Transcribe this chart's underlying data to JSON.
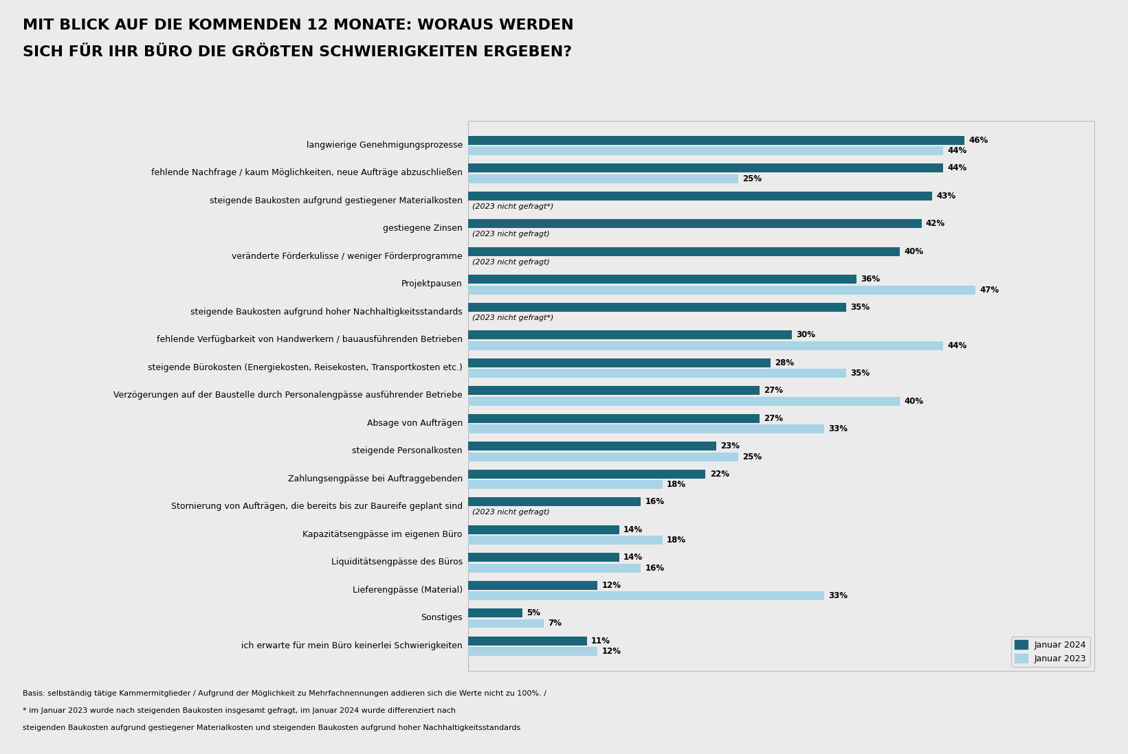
{
  "title_line1": "MIT BLICK AUF DIE KOMMENDEN 12 MONATE: WORAUS WERDEN",
  "title_line2": "SICH FÜR IHR BÜRO DIE GRÖßTEN SCHWIERIGKEITEN ERGEBEN?",
  "categories": [
    "langwierige Genehmigungsprozesse",
    "fehlende Nachfrage / kaum Möglichkeiten, neue Aufträge abzuschließen",
    "steigende Baukosten aufgrund gestiegener Materialkosten",
    "gestiegene Zinsen",
    "veränderte Förderkulisse / weniger Förderprogramme",
    "Projektpausen",
    "steigende Baukosten aufgrund hoher Nachhaltigkeitsstandards",
    "fehlende Verfügbarkeit von Handwerkern / bauausführenden Betrieben",
    "steigende Bürokosten (Energiekosten, Reisekosten, Transportkosten etc.)",
    "Verzögerungen auf der Baustelle durch Personalengpässe ausführender Betriebe",
    "Absage von Aufträgen",
    "steigende Personalkosten",
    "Zahlungsengpässe bei Auftraggebenden",
    "Stornierung von Aufträgen, die bereits bis zur Baureife geplant sind",
    "Kapazitätsengpässe im eigenen Büro",
    "Liquiditätsengpässe des Büros",
    "Lieferengpässe (Material)",
    "Sonstiges",
    "ich erwarte für mein Büro keinerlei Schwierigkeiten"
  ],
  "values_2024": [
    46,
    44,
    43,
    42,
    40,
    36,
    35,
    30,
    28,
    27,
    27,
    23,
    22,
    16,
    14,
    14,
    12,
    5,
    11
  ],
  "values_2023": [
    44,
    25,
    null,
    null,
    null,
    47,
    null,
    44,
    35,
    40,
    33,
    25,
    18,
    null,
    18,
    16,
    33,
    7,
    12
  ],
  "label_2023_not_asked": [
    false,
    false,
    true,
    true,
    true,
    false,
    true,
    false,
    false,
    false,
    false,
    false,
    false,
    true,
    false,
    false,
    false,
    false,
    false
  ],
  "not_asked_asterisk": [
    false,
    false,
    true,
    false,
    false,
    false,
    true,
    false,
    false,
    false,
    false,
    false,
    false,
    false,
    false,
    false,
    false,
    false,
    false
  ],
  "color_2024": "#1a6678",
  "color_2023": "#a8d4e6",
  "background_color": "#ebebeb",
  "chart_bg": "#ebebeb",
  "footnote_line1": "Basis: selbständig tätige Kammermitglieder / Aufgrund der Möglichkeit zu Mehrfachnennungen addieren sich die Werte nicht zu 100%. /",
  "footnote_line2": "* im Januar 2023 wurde nach steigenden Baukosten insgesamt gefragt, im Januar 2024 wurde differenziert nach",
  "footnote_line3": "steigenden Baukosten aufgrund gestiegener Materialkosten und steigenden Baukosten aufgrund hoher Nachhaltigkeitsstandards",
  "legend_2024": "Januar 2024",
  "legend_2023": "Januar 2023"
}
